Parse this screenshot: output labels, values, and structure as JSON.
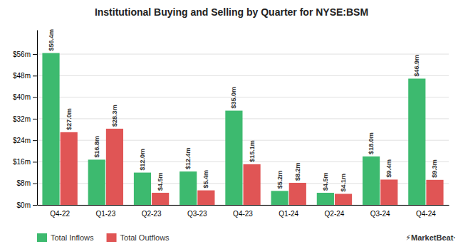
{
  "chart_data": {
    "type": "bar",
    "title": "Institutional Buying and Selling by Quarter for NYSE:BSM",
    "categories": [
      "Q4-22",
      "Q1-23",
      "Q2-23",
      "Q3-23",
      "Q4-23",
      "Q1-24",
      "Q2-24",
      "Q3-24",
      "Q4-24"
    ],
    "series": [
      {
        "name": "Total Inflows",
        "color": "#3dba6f",
        "values": [
          56.4,
          16.8,
          12.0,
          12.4,
          35.0,
          5.2,
          4.5,
          18.0,
          46.9
        ],
        "value_labels": [
          "$56.4m",
          "$16.8m",
          "$12.0m",
          "$12.4m",
          "$35.0m",
          "$5.2m",
          "$4.5m",
          "$18.0m",
          "$46.9m"
        ]
      },
      {
        "name": "Total Outflows",
        "color": "#e05555",
        "values": [
          27.0,
          28.3,
          4.5,
          5.4,
          15.1,
          8.2,
          4.1,
          9.4,
          9.3
        ],
        "value_labels": [
          "$27.0m",
          "$28.3m",
          "$4.5m",
          "$5.4m",
          "$15.1m",
          "$8.2m",
          "$4.1m",
          "$9.4m",
          "$9.3m"
        ]
      }
    ],
    "ylim": [
      0,
      65
    ],
    "yticks": [
      {
        "value": 0,
        "label": "$0m"
      },
      {
        "value": 8,
        "label": "$8m"
      },
      {
        "value": 16,
        "label": "$16m"
      },
      {
        "value": 24,
        "label": "$24m"
      },
      {
        "value": 32,
        "label": "$32m"
      },
      {
        "value": 40,
        "label": "$40m"
      },
      {
        "value": 48,
        "label": "$48m"
      },
      {
        "value": 56,
        "label": "$56m"
      }
    ],
    "grid": true,
    "data_labels": true,
    "legend": "bottom",
    "annotations": [
      "⚡MarketBeat·"
    ]
  }
}
